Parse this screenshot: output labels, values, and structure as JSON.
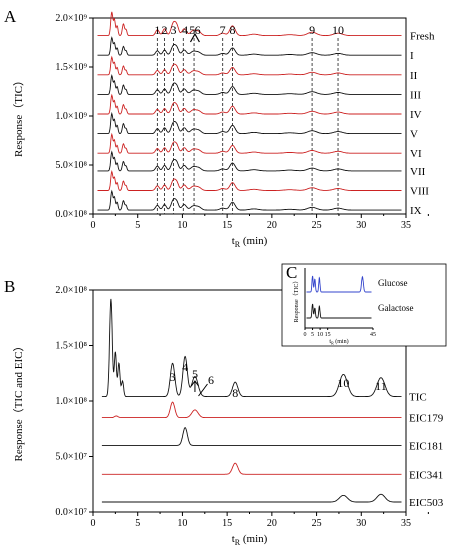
{
  "chart_data": [
    {
      "panel": "A",
      "type": "line",
      "xlabel": "t",
      "xlabel_sub": "R",
      "xlabel_unit": "(min)",
      "ylabel": "Response（TIC）",
      "xlim": [
        0,
        35
      ],
      "ylim": [
        0,
        2000000000
      ],
      "x_ticks": [
        "0",
        "5",
        "10",
        "15",
        "20",
        "25",
        "30",
        "35"
      ],
      "y_ticks": [
        {
          "value": 0,
          "label": "0.0×10⁸"
        },
        {
          "value": 500000000,
          "label": "5.0×10⁸"
        },
        {
          "value": 1000000000,
          "label": "1.0×10⁹"
        },
        {
          "value": 1500000000,
          "label": "1.5×10⁹"
        },
        {
          "value": 2000000000,
          "label": "2.0×10⁹"
        }
      ],
      "peak_labels": [
        {
          "label": "1",
          "x": 7.2
        },
        {
          "label": "2",
          "x": 8.0
        },
        {
          "label": "3",
          "x": 9.0
        },
        {
          "label": "4",
          "x": 10.3
        },
        {
          "label": "5",
          "x": 11.1
        },
        {
          "label": "6",
          "x": 11.7
        },
        {
          "label": "7",
          "x": 14.5
        },
        {
          "label": "8",
          "x": 15.6
        },
        {
          "label": "9",
          "x": 24.5
        },
        {
          "label": "10",
          "x": 27.4
        }
      ],
      "dashed_lines": [
        7.2,
        8.0,
        9.0,
        10.1,
        11.3,
        14.5,
        15.6,
        24.5,
        27.4
      ],
      "series": [
        {
          "name": "Fresh",
          "color": "#cc2222",
          "baseline": 1820000000,
          "scale": 1.0
        },
        {
          "name": "I",
          "color": "#111111",
          "baseline": 1620000000,
          "scale": 0.75
        },
        {
          "name": "II",
          "color": "#cc2222",
          "baseline": 1420000000,
          "scale": 0.75
        },
        {
          "name": "III",
          "color": "#111111",
          "baseline": 1220000000,
          "scale": 0.8
        },
        {
          "name": "IV",
          "color": "#cc2222",
          "baseline": 1020000000,
          "scale": 0.8
        },
        {
          "name": "V",
          "color": "#111111",
          "baseline": 820000000,
          "scale": 0.85
        },
        {
          "name": "VI",
          "color": "#cc2222",
          "baseline": 620000000,
          "scale": 0.8
        },
        {
          "name": "VII",
          "color": "#111111",
          "baseline": 440000000,
          "scale": 0.8
        },
        {
          "name": "VIII",
          "color": "#cc2222",
          "baseline": 240000000,
          "scale": 0.8
        },
        {
          "name": "IX",
          "color": "#111111",
          "baseline": 40000000,
          "scale": 0.8
        }
      ]
    },
    {
      "panel": "B",
      "type": "line",
      "xlabel": "t",
      "xlabel_sub": "R",
      "xlabel_unit": "(min)",
      "ylabel": "Response（TIC and EIC）",
      "xlim": [
        0,
        35
      ],
      "ylim": [
        0,
        200000000
      ],
      "x_ticks": [
        "0",
        "5",
        "10",
        "15",
        "20",
        "25",
        "30",
        "35"
      ],
      "y_ticks": [
        {
          "value": 0,
          "label": "0.0×10⁷"
        },
        {
          "value": 50000000,
          "label": "5.0×10⁷"
        },
        {
          "value": 100000000,
          "label": "1.0×10⁸"
        },
        {
          "value": 150000000,
          "label": "1.5×10⁸"
        },
        {
          "value": 200000000,
          "label": "2.0×10⁸"
        }
      ],
      "peak_labels": [
        {
          "label": "3",
          "x": 8.9
        },
        {
          "label": "4",
          "x": 10.3
        },
        {
          "label": "5",
          "x": 11.4
        },
        {
          "label": "6",
          "x": 12.3
        },
        {
          "label": "8",
          "x": 15.9
        },
        {
          "label": "10",
          "x": 28.0
        },
        {
          "label": "11",
          "x": 32.2
        }
      ],
      "series": [
        {
          "name": "TIC",
          "color": "#111111",
          "baseline": 104000000,
          "peaks": [
            {
              "x": 2.0,
              "h": 88000000,
              "w": 0.15
            },
            {
              "x": 2.5,
              "h": 40000000,
              "w": 0.12
            },
            {
              "x": 2.9,
              "h": 30000000,
              "w": 0.12
            },
            {
              "x": 3.3,
              "h": 14000000,
              "w": 0.12
            },
            {
              "x": 8.9,
              "h": 30000000,
              "w": 0.25
            },
            {
              "x": 10.3,
              "h": 36000000,
              "w": 0.25
            },
            {
              "x": 11.4,
              "h": 18000000,
              "w": 0.35
            },
            {
              "x": 15.9,
              "h": 13000000,
              "w": 0.3
            },
            {
              "x": 28.0,
              "h": 20000000,
              "w": 0.45
            },
            {
              "x": 32.2,
              "h": 17000000,
              "w": 0.45
            }
          ]
        },
        {
          "name": "EIC179",
          "color": "#cc2222",
          "baseline": 85000000,
          "peaks": [
            {
              "x": 2.6,
              "h": 1500000,
              "w": 0.2
            },
            {
              "x": 8.9,
              "h": 14000000,
              "w": 0.25
            },
            {
              "x": 11.4,
              "h": 7000000,
              "w": 0.35
            }
          ]
        },
        {
          "name": "EIC181",
          "color": "#111111",
          "baseline": 60000000,
          "peaks": [
            {
              "x": 10.3,
              "h": 16000000,
              "w": 0.25
            }
          ]
        },
        {
          "name": "EIC341",
          "color": "#cc2222",
          "baseline": 34000000,
          "peaks": [
            {
              "x": 15.9,
              "h": 10000000,
              "w": 0.3
            }
          ]
        },
        {
          "name": "EIC503",
          "color": "#111111",
          "baseline": 9000000,
          "peaks": [
            {
              "x": 28.0,
              "h": 6000000,
              "w": 0.45
            },
            {
              "x": 32.2,
              "h": 7000000,
              "w": 0.45
            }
          ]
        }
      ]
    },
    {
      "panel": "C",
      "type": "line",
      "xlabel": "t",
      "xlabel_sub": "R",
      "xlabel_unit": "(min)",
      "ylabel": "Response（TIC）",
      "xlim": [
        0,
        45
      ],
      "x_ticks": [
        "0",
        "5",
        "10",
        "15",
        "45"
      ],
      "series": [
        {
          "name": "Glucose",
          "color": "#3344cc",
          "peaks": [
            {
              "x": 5.0,
              "h": 1.0,
              "w": 0.4
            },
            {
              "x": 6.5,
              "h": 0.8,
              "w": 0.4
            },
            {
              "x": 9.5,
              "h": 0.9,
              "w": 0.4
            },
            {
              "x": 38.0,
              "h": 0.95,
              "w": 0.6
            }
          ]
        },
        {
          "name": "Galactose",
          "color": "#111111",
          "peaks": [
            {
              "x": 5.0,
              "h": 1.0,
              "w": 0.4
            },
            {
              "x": 6.5,
              "h": 0.7,
              "w": 0.4
            },
            {
              "x": 9.5,
              "h": 0.85,
              "w": 0.4
            }
          ]
        }
      ]
    }
  ]
}
